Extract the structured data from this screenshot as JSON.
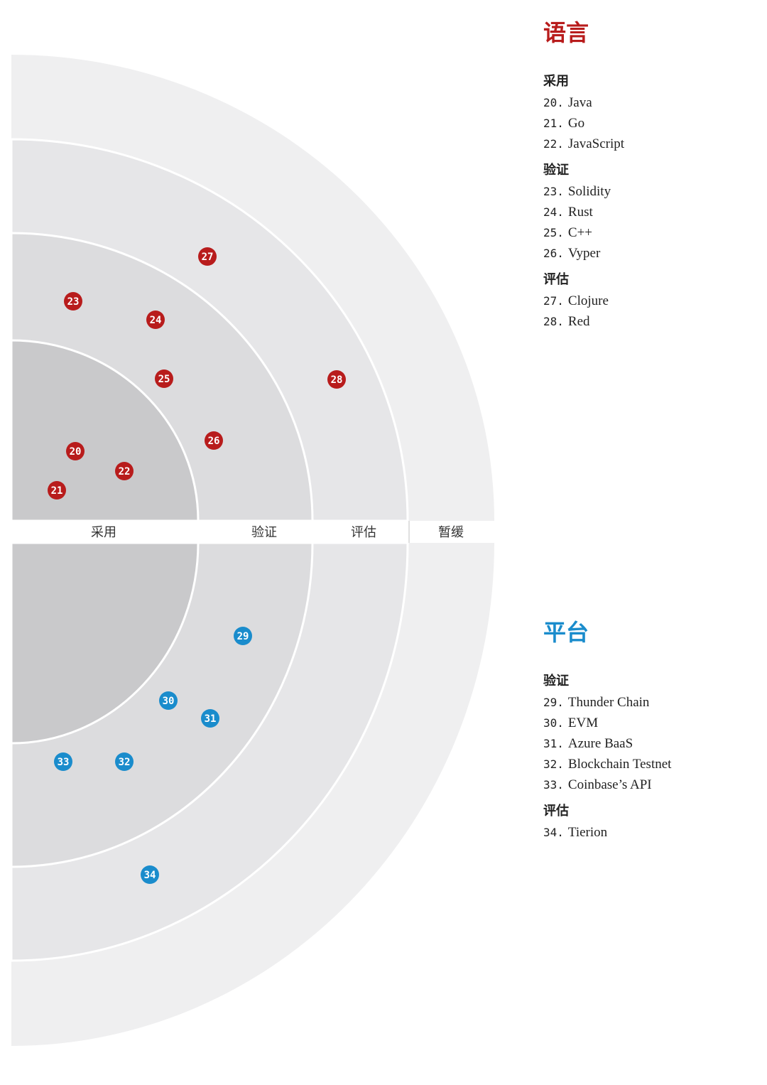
{
  "ring_labels": [
    "采用",
    "验证",
    "评估",
    "暂缓"
  ],
  "colors": {
    "languages": "#b81c1c",
    "platforms": "#1a8ccc",
    "ring_adopt": "#c9c9cb",
    "ring_trial": "#dcdcde",
    "ring_assess": "#e6e6e8",
    "ring_hold": "#efeff0"
  },
  "languages": {
    "title": "语言",
    "groups": [
      {
        "ring": "采用",
        "items": [
          {
            "num": "20.",
            "name": "Java"
          },
          {
            "num": "21.",
            "name": "Go"
          },
          {
            "num": "22.",
            "name": "JavaScript"
          }
        ]
      },
      {
        "ring": "验证",
        "items": [
          {
            "num": "23.",
            "name": "Solidity"
          },
          {
            "num": "24.",
            "name": "Rust"
          },
          {
            "num": "25.",
            "name": "C++"
          },
          {
            "num": "26.",
            "name": "Vyper"
          }
        ]
      },
      {
        "ring": "评估",
        "items": [
          {
            "num": "27.",
            "name": "Clojure"
          },
          {
            "num": "28.",
            "name": "Red"
          }
        ]
      }
    ]
  },
  "platforms": {
    "title": "平台",
    "groups": [
      {
        "ring": "验证",
        "items": [
          {
            "num": "29.",
            "name": "Thunder Chain"
          },
          {
            "num": "30.",
            "name": "EVM"
          },
          {
            "num": "31.",
            "name": "Azure BaaS"
          },
          {
            "num": "32.",
            "name": "Blockchain Testnet"
          },
          {
            "num": "33.",
            "name": "Coinbase’s API"
          }
        ]
      },
      {
        "ring": "评估",
        "items": [
          {
            "num": "34.",
            "name": "Tierion"
          }
        ]
      }
    ]
  },
  "blips": {
    "languages": [
      "20",
      "21",
      "22",
      "23",
      "24",
      "25",
      "26",
      "27",
      "28"
    ],
    "platforms": [
      "29",
      "30",
      "31",
      "32",
      "33",
      "34"
    ]
  }
}
